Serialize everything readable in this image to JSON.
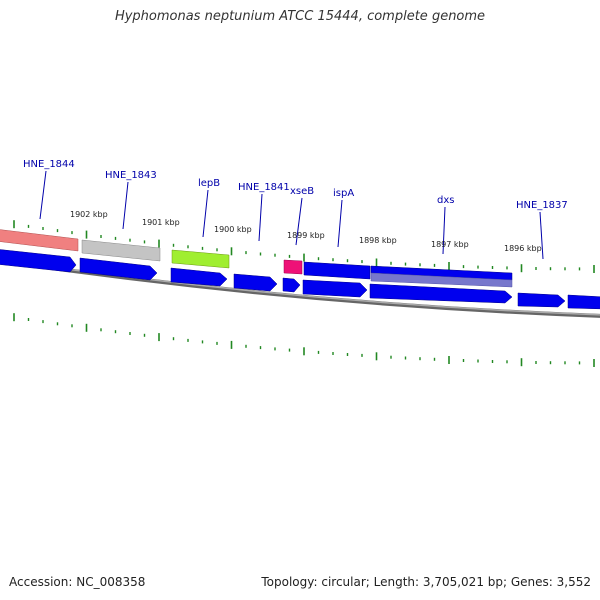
{
  "title": "Hyphomonas neptunium ATCC 15444, complete genome",
  "footer": {
    "accession": "Accession: NC_008358",
    "summary": "Topology: circular; Length: 3,705,021 bp; Genes: 3,552"
  },
  "colors": {
    "gene_blue": "#0000ee",
    "salmon": "#f08080",
    "gray_gene": "#c0c0c0",
    "green_gene": "#99ee22",
    "magenta_gene": "#ee1177",
    "purple_gene": "#7777cc",
    "tick_green": "#228822",
    "label_blue": "#0000aa",
    "backbone": "#888888"
  },
  "gene_labels": [
    "HNE_1844",
    "HNE_1843",
    "lepB",
    "HNE_1841",
    "xseB",
    "ispA",
    "dxs",
    "HNE_1837"
  ],
  "kbp_labels": [
    "1902 kbp",
    "1901 kbp",
    "1900 kbp",
    "1899 kbp",
    "1898 kbp",
    "1897 kbp",
    "1896 kbp"
  ]
}
